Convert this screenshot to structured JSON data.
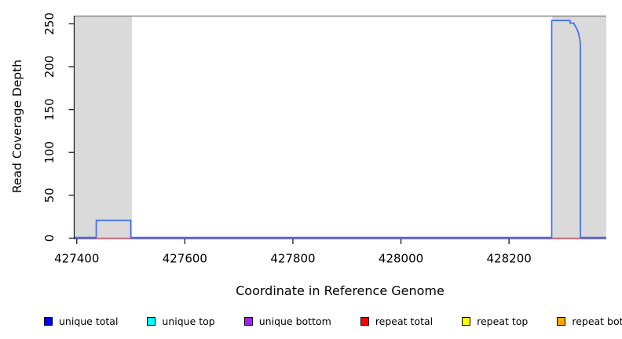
{
  "chart_data": {
    "type": "line",
    "title": "",
    "xlabel": "Coordinate in Reference Genome",
    "ylabel": "Read Coverage Depth",
    "xlim": [
      427396,
      428380
    ],
    "ylim": [
      0,
      259
    ],
    "x_ticks": [
      427400,
      427600,
      427800,
      428000,
      428200
    ],
    "x_tick_labels": [
      "427400",
      "427600",
      "427800",
      "428000",
      "428200"
    ],
    "y_ticks": [
      0,
      50,
      100,
      150,
      200,
      250
    ],
    "y_tick_labels": [
      "0",
      "50",
      "100",
      "150",
      "200",
      "250"
    ],
    "grid": false,
    "region_fill": "#dadada",
    "top_border_color": "#8a8a8a",
    "axis_color": "#1a1a1a",
    "shaded_regions": [
      {
        "name": "left-gray-region",
        "x0": 427397,
        "x1": 427502
      },
      {
        "name": "right-gray-region",
        "x0": 428280,
        "x1": 428380
      }
    ],
    "series": [
      {
        "name": "repeat bottom",
        "color": "#ffa500",
        "width": 1,
        "dy": 0,
        "segments": [
          [
            [
              427396,
              0
            ],
            [
              428380,
              0
            ]
          ]
        ]
      },
      {
        "name": "repeat top",
        "color": "#ffff00",
        "width": 1,
        "dy": 0,
        "segments": [
          [
            [
              427396,
              0
            ],
            [
              428380,
              0
            ]
          ]
        ]
      },
      {
        "name": "unique top",
        "color": "#00ffff",
        "width": 1,
        "dy": 0,
        "segments": [
          [
            [
              427396,
              0
            ],
            [
              428380,
              0
            ]
          ]
        ]
      },
      {
        "name": "unique bottom",
        "color": "#9b74ec",
        "width": 1.4,
        "dy": 0,
        "segments": [
          [
            [
              427396,
              0
            ],
            [
              428380,
              0
            ]
          ]
        ]
      },
      {
        "name": "repeat total",
        "color": "#ea6a78",
        "width": 1.4,
        "dy": 0.3,
        "segments": [
          [
            [
              427436,
              0
            ],
            [
              427500,
              0
            ]
          ],
          [
            [
              428279,
              0
            ],
            [
              428333,
              0
            ]
          ]
        ]
      },
      {
        "name": "unique total",
        "color": "#3d6cf0",
        "width": 1.7,
        "dy": -0.9,
        "segments": [
          [
            [
              427396,
              0
            ],
            [
              427436,
              0
            ],
            [
              427436,
              20
            ],
            [
              427500,
              20
            ],
            [
              427500,
              0
            ],
            [
              428279,
              0
            ],
            [
              428279,
              253
            ],
            [
              428313,
              253
            ],
            [
              428313,
              250
            ],
            [
              428320,
              250
            ],
            [
              428322,
              247
            ],
            [
              428325,
              244
            ],
            [
              428327,
              241
            ],
            [
              428329,
              237
            ],
            [
              428331,
              231
            ],
            [
              428332,
              225
            ],
            [
              428332,
              0
            ],
            [
              428380,
              0
            ]
          ]
        ]
      }
    ]
  },
  "legend": {
    "items": [
      {
        "label": "unique total",
        "color": "#0000ff"
      },
      {
        "label": "unique top",
        "color": "#00ffff"
      },
      {
        "label": "unique bottom",
        "color": "#a020f0"
      },
      {
        "label": "repeat total",
        "color": "#ff0000"
      },
      {
        "label": "repeat top",
        "color": "#ffff00"
      },
      {
        "label": "repeat bottom",
        "color": "#ffa500"
      }
    ]
  }
}
